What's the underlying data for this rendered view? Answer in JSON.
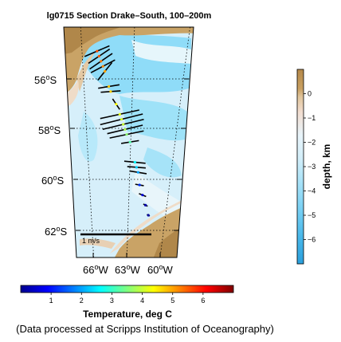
{
  "chart_data": [
    {
      "type": "map",
      "title": "lg0715 Section Drake–South, 100–200m",
      "lat_labels": [
        {
          "deg": "56",
          "hemi": "S",
          "lat": -56
        },
        {
          "deg": "58",
          "hemi": "S",
          "lat": -58
        },
        {
          "deg": "60",
          "hemi": "S",
          "lat": -60
        },
        {
          "deg": "62",
          "hemi": "S",
          "lat": -62
        }
      ],
      "lon_labels": [
        {
          "deg": "66",
          "hemi": "W",
          "lon": -66
        },
        {
          "deg": "63",
          "hemi": "W",
          "lon": -63
        },
        {
          "deg": "60",
          "hemi": "W",
          "lon": -60
        }
      ],
      "lat_range": [
        -63.2,
        -54.2
      ],
      "lon_range": [
        -67.5,
        -58.5
      ],
      "grid": true,
      "scale_arrow_label": "1 m/s",
      "track_colormap": "jet",
      "vectors": [
        {
          "lat": -54.9,
          "lon": -64.6,
          "u": 0.35,
          "v": 0.15,
          "temp": 5.6
        },
        {
          "lat": -55.1,
          "lon": -64.5,
          "u": 0.3,
          "v": 0.2,
          "temp": 5.5
        },
        {
          "lat": -55.3,
          "lon": -64.4,
          "u": 0.32,
          "v": 0.22,
          "temp": 5.3
        },
        {
          "lat": -55.5,
          "lon": -64.3,
          "u": 0.34,
          "v": 0.18,
          "temp": 5.2
        },
        {
          "lat": -55.7,
          "lon": -64.2,
          "u": 0.2,
          "v": 0.25,
          "temp": 5.0
        },
        {
          "lat": -56.3,
          "lon": -64.0,
          "u": 0.3,
          "v": 0.05,
          "temp": 4.8
        },
        {
          "lat": -56.5,
          "lon": -63.9,
          "u": 0.28,
          "v": 0.02,
          "temp": 4.7
        },
        {
          "lat": -57.0,
          "lon": -63.6,
          "u": 0.1,
          "v": -0.15,
          "temp": 4.4
        },
        {
          "lat": -57.4,
          "lon": -63.4,
          "u": 0.55,
          "v": 0.12,
          "temp": 4.2
        },
        {
          "lat": -57.6,
          "lon": -63.3,
          "u": 0.6,
          "v": 0.15,
          "temp": 4.1
        },
        {
          "lat": -57.8,
          "lon": -63.2,
          "u": 0.58,
          "v": 0.14,
          "temp": 4.0
        },
        {
          "lat": -58.0,
          "lon": -63.1,
          "u": 0.5,
          "v": 0.12,
          "temp": 3.8
        },
        {
          "lat": -58.2,
          "lon": -63.0,
          "u": 0.48,
          "v": 0.1,
          "temp": 3.6
        },
        {
          "lat": -58.5,
          "lon": -62.8,
          "u": 0.25,
          "v": 0.04,
          "temp": 3.2
        },
        {
          "lat": -59.3,
          "lon": -62.5,
          "u": 0.3,
          "v": -0.03,
          "temp": 2.6
        },
        {
          "lat": -59.5,
          "lon": -62.4,
          "u": 0.26,
          "v": -0.02,
          "temp": 2.3
        },
        {
          "lat": -59.7,
          "lon": -62.3,
          "u": 0.24,
          "v": -0.04,
          "temp": 2.0
        },
        {
          "lat": -60.2,
          "lon": -62.2,
          "u": 0.12,
          "v": -0.02,
          "temp": 1.2
        },
        {
          "lat": -60.6,
          "lon": -62.0,
          "u": 0.1,
          "v": -0.04,
          "temp": 0.6
        },
        {
          "lat": -61.0,
          "lon": -61.8,
          "u": 0.06,
          "v": -0.03,
          "temp": 0.3
        },
        {
          "lat": -61.4,
          "lon": -61.6,
          "u": 0.04,
          "v": -0.02,
          "temp": 0.2
        }
      ]
    },
    {
      "type": "colorbar",
      "label": "depth, km",
      "range": [
        -7,
        1
      ],
      "ticks": [
        "0",
        "−1",
        "−2",
        "−3",
        "−4",
        "−5",
        "−6"
      ],
      "tick_values": [
        0,
        -1,
        -2,
        -3,
        -4,
        -5,
        -6
      ]
    },
    {
      "type": "colorbar",
      "label": "Temperature, deg C",
      "range": [
        0,
        7
      ],
      "ticks": [
        "1",
        "2",
        "3",
        "4",
        "5",
        "6"
      ],
      "tick_values": [
        1,
        2,
        3,
        4,
        5,
        6
      ],
      "colormap": "jet"
    }
  ],
  "credit": "(Data processed at Scripps Institution of Oceanography)"
}
